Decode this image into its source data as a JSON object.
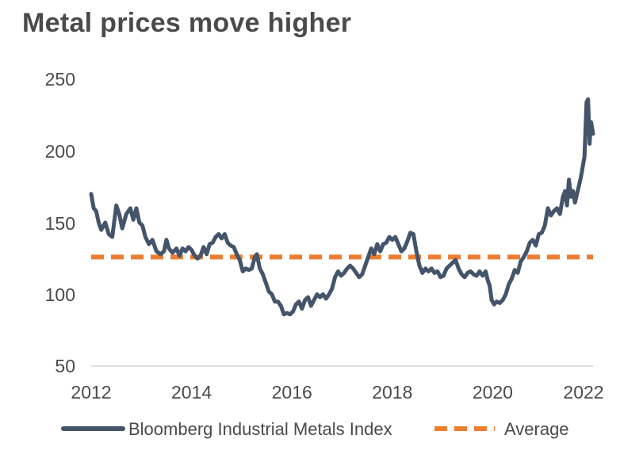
{
  "chart_data": {
    "type": "line",
    "title": "Metal prices move higher",
    "xlabel": "",
    "ylabel": "",
    "xlim": [
      2012,
      2022
    ],
    "ylim": [
      50,
      250
    ],
    "x_ticks": [
      "2012",
      "2014",
      "2016",
      "2018",
      "2020",
      "2022"
    ],
    "y_ticks": [
      "250",
      "200",
      "150",
      "100",
      "50"
    ],
    "legend_position": "bottom",
    "colors": {
      "index": "#44546a",
      "average": "#ed7d31",
      "axis": "#d9d9d9"
    },
    "series": [
      {
        "name": "Bloomberg Industrial Metals Index",
        "style": "solid",
        "points": [
          [
            2012.0,
            170
          ],
          [
            2012.05,
            160
          ],
          [
            2012.1,
            158
          ],
          [
            2012.15,
            150
          ],
          [
            2012.2,
            145
          ],
          [
            2012.28,
            150
          ],
          [
            2012.35,
            142
          ],
          [
            2012.42,
            140
          ],
          [
            2012.5,
            162
          ],
          [
            2012.56,
            156
          ],
          [
            2012.62,
            146
          ],
          [
            2012.7,
            156
          ],
          [
            2012.78,
            160
          ],
          [
            2012.84,
            152
          ],
          [
            2012.9,
            160
          ],
          [
            2012.96,
            150
          ],
          [
            2013.02,
            148
          ],
          [
            2013.08,
            140
          ],
          [
            2013.15,
            135
          ],
          [
            2013.22,
            138
          ],
          [
            2013.3,
            130
          ],
          [
            2013.38,
            128
          ],
          [
            2013.45,
            130
          ],
          [
            2013.5,
            138
          ],
          [
            2013.55,
            132
          ],
          [
            2013.62,
            129
          ],
          [
            2013.7,
            132
          ],
          [
            2013.76,
            127
          ],
          [
            2013.82,
            132
          ],
          [
            2013.88,
            130
          ],
          [
            2013.94,
            133
          ],
          [
            2014.0,
            131
          ],
          [
            2014.06,
            127
          ],
          [
            2014.12,
            125
          ],
          [
            2014.18,
            127
          ],
          [
            2014.24,
            133
          ],
          [
            2014.3,
            128
          ],
          [
            2014.36,
            135
          ],
          [
            2014.42,
            136
          ],
          [
            2014.48,
            140
          ],
          [
            2014.54,
            142
          ],
          [
            2014.6,
            139
          ],
          [
            2014.66,
            142
          ],
          [
            2014.72,
            136
          ],
          [
            2014.78,
            134
          ],
          [
            2014.84,
            133
          ],
          [
            2014.9,
            128
          ],
          [
            2014.96,
            124
          ],
          [
            2015.02,
            116
          ],
          [
            2015.08,
            118
          ],
          [
            2015.14,
            117
          ],
          [
            2015.2,
            118
          ],
          [
            2015.26,
            126
          ],
          [
            2015.3,
            128
          ],
          [
            2015.36,
            118
          ],
          [
            2015.42,
            114
          ],
          [
            2015.48,
            108
          ],
          [
            2015.54,
            102
          ],
          [
            2015.6,
            100
          ],
          [
            2015.66,
            95
          ],
          [
            2015.72,
            95
          ],
          [
            2015.78,
            92
          ],
          [
            2015.84,
            86
          ],
          [
            2015.9,
            87
          ],
          [
            2015.96,
            86
          ],
          [
            2016.02,
            88
          ],
          [
            2016.08,
            93
          ],
          [
            2016.14,
            95
          ],
          [
            2016.2,
            90
          ],
          [
            2016.26,
            96
          ],
          [
            2016.32,
            98
          ],
          [
            2016.38,
            92
          ],
          [
            2016.44,
            96
          ],
          [
            2016.5,
            100
          ],
          [
            2016.56,
            98
          ],
          [
            2016.62,
            100
          ],
          [
            2016.68,
            97
          ],
          [
            2016.74,
            100
          ],
          [
            2016.8,
            104
          ],
          [
            2016.86,
            112
          ],
          [
            2016.92,
            116
          ],
          [
            2016.98,
            113
          ],
          [
            2017.04,
            115
          ],
          [
            2017.1,
            118
          ],
          [
            2017.16,
            120
          ],
          [
            2017.22,
            118
          ],
          [
            2017.28,
            115
          ],
          [
            2017.34,
            112
          ],
          [
            2017.4,
            114
          ],
          [
            2017.46,
            120
          ],
          [
            2017.52,
            126
          ],
          [
            2017.58,
            132
          ],
          [
            2017.64,
            128
          ],
          [
            2017.7,
            135
          ],
          [
            2017.76,
            130
          ],
          [
            2017.82,
            135
          ],
          [
            2017.88,
            136
          ],
          [
            2017.94,
            140
          ],
          [
            2018.0,
            138
          ],
          [
            2018.06,
            140
          ],
          [
            2018.12,
            135
          ],
          [
            2018.18,
            130
          ],
          [
            2018.24,
            132
          ],
          [
            2018.3,
            137
          ],
          [
            2018.36,
            143
          ],
          [
            2018.42,
            142
          ],
          [
            2018.48,
            130
          ],
          [
            2018.54,
            120
          ],
          [
            2018.6,
            115
          ],
          [
            2018.66,
            118
          ],
          [
            2018.72,
            116
          ],
          [
            2018.78,
            118
          ],
          [
            2018.84,
            115
          ],
          [
            2018.9,
            116
          ],
          [
            2018.96,
            112
          ],
          [
            2019.02,
            113
          ],
          [
            2019.08,
            118
          ],
          [
            2019.14,
            120
          ],
          [
            2019.2,
            122
          ],
          [
            2019.26,
            124
          ],
          [
            2019.32,
            118
          ],
          [
            2019.38,
            114
          ],
          [
            2019.44,
            112
          ],
          [
            2019.5,
            115
          ],
          [
            2019.56,
            116
          ],
          [
            2019.62,
            114
          ],
          [
            2019.68,
            113
          ],
          [
            2019.74,
            116
          ],
          [
            2019.8,
            113
          ],
          [
            2019.86,
            116
          ],
          [
            2019.9,
            110
          ],
          [
            2019.94,
            106
          ],
          [
            2019.98,
            96
          ],
          [
            2020.03,
            93
          ],
          [
            2020.08,
            95
          ],
          [
            2020.14,
            94
          ],
          [
            2020.2,
            96
          ],
          [
            2020.26,
            100
          ],
          [
            2020.32,
            107
          ],
          [
            2020.38,
            111
          ],
          [
            2020.44,
            117
          ],
          [
            2020.5,
            115
          ],
          [
            2020.56,
            123
          ],
          [
            2020.62,
            126
          ],
          [
            2020.68,
            130
          ],
          [
            2020.74,
            136
          ],
          [
            2020.8,
            138
          ],
          [
            2020.86,
            134
          ],
          [
            2020.92,
            142
          ],
          [
            2020.98,
            143
          ],
          [
            2021.04,
            148
          ],
          [
            2021.1,
            160
          ],
          [
            2021.16,
            155
          ],
          [
            2021.22,
            158
          ],
          [
            2021.28,
            160
          ],
          [
            2021.34,
            156
          ],
          [
            2021.4,
            168
          ],
          [
            2021.44,
            172
          ],
          [
            2021.48,
            162
          ],
          [
            2021.52,
            180
          ],
          [
            2021.56,
            168
          ],
          [
            2021.6,
            172
          ],
          [
            2021.64,
            164
          ],
          [
            2021.68,
            170
          ],
          [
            2021.72,
            176
          ],
          [
            2021.76,
            182
          ],
          [
            2021.8,
            190
          ],
          [
            2021.83,
            196
          ],
          [
            2021.85,
            215
          ],
          [
            2021.87,
            234
          ],
          [
            2021.9,
            236
          ],
          [
            2021.93,
            205
          ],
          [
            2021.96,
            220
          ],
          [
            2022.0,
            212
          ]
        ]
      },
      {
        "name": "Average",
        "style": "dashed",
        "value": 126
      }
    ]
  }
}
